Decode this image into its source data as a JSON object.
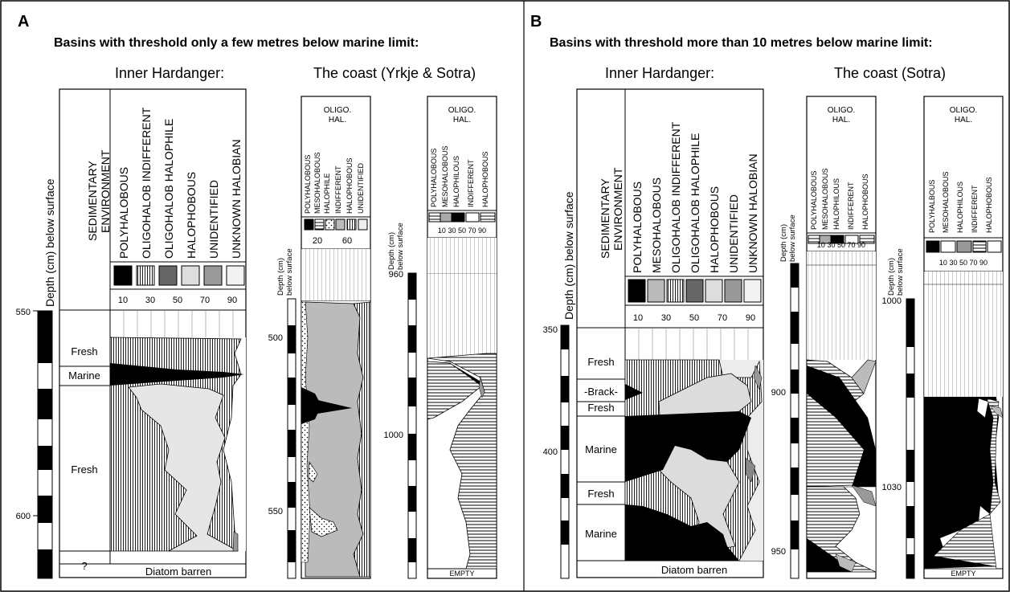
{
  "panel_a": {
    "label": "A",
    "title": "Basins with threshold only a few metres below marine limit:",
    "left_heading": "Inner Hardanger:",
    "right_heading": "The coast (Yrkje & Sotra)",
    "core1": {
      "depth_label": "Depth (cm) below surface",
      "environment_header": "SEDIMENTARY ENVIRONMENT",
      "categories": [
        "POLYHALOBOUS",
        "OLIGOHALOB INDIFFERENT",
        "OLIGOHALOB HALOPHILE",
        "HALOPHOBOUS",
        "UNIDENTIFIED",
        "UNKNOWN HALOBIAN"
      ],
      "scale_ticks": [
        "10",
        "30",
        "50",
        "70",
        "90"
      ],
      "depth_ticks": [
        "550",
        "600"
      ],
      "zones": [
        "Fresh",
        "Marine",
        "Fresh",
        "?"
      ],
      "footer": "Diatom barren"
    },
    "core2": {
      "group_label": "OLIGO. HAL.",
      "depth_label": "Depth (cm) below surface",
      "categories": [
        "POLYHALOBOUS",
        "MESOHALOBOUS",
        "HALOPHILE",
        "INDIFFERENT",
        "HALOPHOBOUS",
        "UNIDENTIFIED"
      ],
      "scale_ticks": [
        "20",
        "60"
      ],
      "depth_ticks": [
        "500",
        "550"
      ]
    },
    "core3": {
      "group_label": "OLIGO. HAL.",
      "depth_label": "Depth (cm) below surface",
      "categories": [
        "POLYHALOBOUS",
        "MESOHALOBOUS",
        "HALOPHILOUS",
        "INDIFFERENT",
        "HALOPHOBOUS"
      ],
      "scale_ticks": [
        "10",
        "30",
        "50",
        "70",
        "90"
      ],
      "depth_ticks": [
        "960",
        "1000"
      ],
      "footer": "EMPTY"
    }
  },
  "panel_b": {
    "label": "B",
    "title": "Basins with threshold more than 10 metres below marine limit:",
    "left_heading": "Inner Hardanger:",
    "right_heading": "The coast (Sotra)",
    "core1": {
      "depth_label": "Depth (cm) below surface",
      "environment_header": "SEDIMENTARY ENVIRONMENT",
      "categories": [
        "POLYHALOBOUS",
        "MESOHALOBOUS",
        "OLIGOHALOB INDIFFERENT",
        "OLIGOHALOB HALOPHILE",
        "HALOPHOBOUS",
        "UNIDENTIFIED",
        "UNKNOWN HALOBIAN"
      ],
      "scale_ticks": [
        "10",
        "30",
        "50",
        "70",
        "90"
      ],
      "depth_ticks": [
        "350",
        "400"
      ],
      "zones": [
        "Fresh",
        "Brack",
        "Fresh",
        "Marine",
        "Fresh",
        "Marine"
      ],
      "footer": "Diatom barren"
    },
    "core2": {
      "group_label": "OLIGO. HAL.",
      "depth_label": "Depth (cm) below surface",
      "categories": [
        "POLYHALOBOUS",
        "MESOHALOBOUS",
        "HALOPHILOUS",
        "INDIFFERENT",
        "HALOPHOBOUS"
      ],
      "scale_ticks": [
        "10",
        "30",
        "50",
        "70",
        "90"
      ],
      "depth_ticks": [
        "900",
        "950"
      ]
    },
    "core3": {
      "group_label": "OLIGO. HAL.",
      "depth_label": "Depth (cm) below surface",
      "categories": [
        "POLYHALBOUS",
        "MESOHALOBOUS",
        "HALOPHILOUS",
        "INDIFFERENT",
        "HALOPHOBOUS"
      ],
      "scale_ticks": [
        "10",
        "30",
        "50",
        "70",
        "90"
      ],
      "depth_ticks": [
        "1000",
        "1030"
      ],
      "footer": "EMPTY"
    }
  }
}
